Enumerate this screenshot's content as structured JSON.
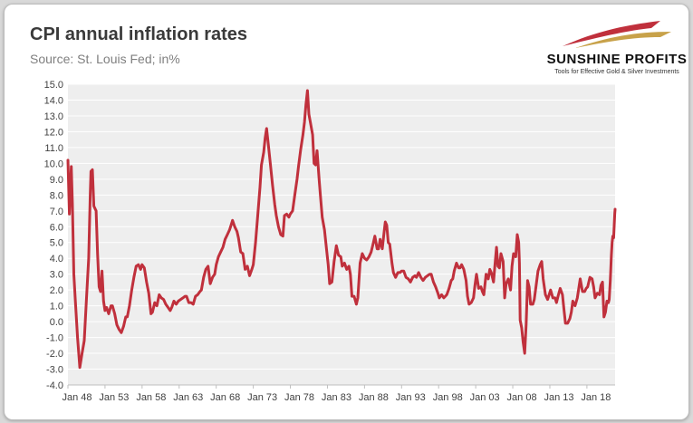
{
  "header": {
    "title": "CPI annual inflation rates",
    "subtitle": "Source: St. Louis Fed; in%"
  },
  "logo": {
    "name": "SUNSHINE PROFITS",
    "tagline": "Tools for Effective Gold & Silver Investments"
  },
  "colors": {
    "line": "#c0303c",
    "plot_bg": "#eeeeee",
    "grid": "#ffffff"
  },
  "chart_data": {
    "type": "line",
    "title": "CPI annual inflation rates",
    "subtitle": "Source: St. Louis Fed; in%",
    "xlabel": "",
    "ylabel": "",
    "ylim": [
      -4.0,
      15.0
    ],
    "xlim": [
      1948.0,
      2021.8
    ],
    "grid": "horizontal",
    "yticks": [
      "15.0",
      "14.0",
      "13.0",
      "12.0",
      "11.0",
      "10.0",
      "9.0",
      "8.0",
      "7.0",
      "6.0",
      "5.0",
      "4.0",
      "3.0",
      "2.0",
      "1.0",
      "0.0",
      "-1.0",
      "-2.0",
      "-3.0",
      "-4.0"
    ],
    "xticks": [
      "Jan 48",
      "Jan 53",
      "Jan 58",
      "Jan 63",
      "Jan 68",
      "Jan 73",
      "Jan 78",
      "Jan 83",
      "Jan 88",
      "Jan 93",
      "Jan 98",
      "Jan 03",
      "Jan 08",
      "Jan 13",
      "Jan 18"
    ],
    "series": [
      {
        "values": [
          [
            1948.0,
            10.2
          ],
          [
            1948.2,
            6.8
          ],
          [
            1948.45,
            9.8
          ],
          [
            1948.6,
            7.5
          ],
          [
            1948.8,
            3.0
          ],
          [
            1949.0,
            1.3
          ],
          [
            1949.3,
            -1.0
          ],
          [
            1949.6,
            -2.9
          ],
          [
            1949.9,
            -2.0
          ],
          [
            1950.2,
            -1.2
          ],
          [
            1950.5,
            1.5
          ],
          [
            1950.8,
            4.0
          ],
          [
            1951.0,
            8.0
          ],
          [
            1951.1,
            9.5
          ],
          [
            1951.3,
            9.6
          ],
          [
            1951.5,
            7.3
          ],
          [
            1951.8,
            7.0
          ],
          [
            1952.0,
            4.3
          ],
          [
            1952.2,
            2.2
          ],
          [
            1952.4,
            1.9
          ],
          [
            1952.6,
            3.2
          ],
          [
            1952.8,
            1.3
          ],
          [
            1953.0,
            0.7
          ],
          [
            1953.2,
            0.9
          ],
          [
            1953.5,
            0.5
          ],
          [
            1953.8,
            1.0
          ],
          [
            1954.0,
            1.0
          ],
          [
            1954.3,
            0.5
          ],
          [
            1954.6,
            -0.2
          ],
          [
            1954.9,
            -0.5
          ],
          [
            1955.2,
            -0.7
          ],
          [
            1955.5,
            -0.3
          ],
          [
            1955.8,
            0.3
          ],
          [
            1956.0,
            0.3
          ],
          [
            1956.3,
            1.0
          ],
          [
            1956.6,
            2.0
          ],
          [
            1956.9,
            2.8
          ],
          [
            1957.2,
            3.5
          ],
          [
            1957.5,
            3.6
          ],
          [
            1957.8,
            3.3
          ],
          [
            1958.0,
            3.6
          ],
          [
            1958.3,
            3.4
          ],
          [
            1958.6,
            2.5
          ],
          [
            1958.9,
            1.8
          ],
          [
            1959.2,
            0.5
          ],
          [
            1959.4,
            0.6
          ],
          [
            1959.7,
            1.2
          ],
          [
            1960.0,
            1.0
          ],
          [
            1960.3,
            1.7
          ],
          [
            1960.6,
            1.5
          ],
          [
            1960.9,
            1.4
          ],
          [
            1961.2,
            1.1
          ],
          [
            1961.5,
            0.9
          ],
          [
            1961.8,
            0.7
          ],
          [
            1962.0,
            0.9
          ],
          [
            1962.3,
            1.3
          ],
          [
            1962.6,
            1.1
          ],
          [
            1962.9,
            1.3
          ],
          [
            1963.2,
            1.4
          ],
          [
            1963.5,
            1.5
          ],
          [
            1963.8,
            1.6
          ],
          [
            1964.0,
            1.6
          ],
          [
            1964.3,
            1.2
          ],
          [
            1964.6,
            1.2
          ],
          [
            1964.9,
            1.1
          ],
          [
            1965.2,
            1.6
          ],
          [
            1965.5,
            1.7
          ],
          [
            1965.8,
            1.9
          ],
          [
            1966.0,
            2.0
          ],
          [
            1966.3,
            2.8
          ],
          [
            1966.6,
            3.3
          ],
          [
            1966.9,
            3.5
          ],
          [
            1967.2,
            2.4
          ],
          [
            1967.5,
            2.8
          ],
          [
            1967.8,
            3.0
          ],
          [
            1968.0,
            3.6
          ],
          [
            1968.3,
            4.1
          ],
          [
            1968.6,
            4.4
          ],
          [
            1968.9,
            4.7
          ],
          [
            1969.2,
            5.2
          ],
          [
            1969.5,
            5.5
          ],
          [
            1969.8,
            5.8
          ],
          [
            1970.0,
            6.1
          ],
          [
            1970.2,
            6.4
          ],
          [
            1970.5,
            6.0
          ],
          [
            1970.8,
            5.7
          ],
          [
            1971.0,
            5.3
          ],
          [
            1971.3,
            4.4
          ],
          [
            1971.6,
            4.3
          ],
          [
            1971.9,
            3.3
          ],
          [
            1972.2,
            3.5
          ],
          [
            1972.5,
            2.9
          ],
          [
            1972.8,
            3.3
          ],
          [
            1973.0,
            3.6
          ],
          [
            1973.3,
            5.0
          ],
          [
            1973.6,
            6.7
          ],
          [
            1973.9,
            8.5
          ],
          [
            1974.1,
            9.9
          ],
          [
            1974.4,
            10.7
          ],
          [
            1974.6,
            11.6
          ],
          [
            1974.8,
            12.2
          ],
          [
            1975.0,
            11.3
          ],
          [
            1975.3,
            10.0
          ],
          [
            1975.6,
            8.6
          ],
          [
            1975.9,
            7.4
          ],
          [
            1976.1,
            6.7
          ],
          [
            1976.4,
            6.0
          ],
          [
            1976.7,
            5.5
          ],
          [
            1977.0,
            5.4
          ],
          [
            1977.2,
            6.7
          ],
          [
            1977.5,
            6.8
          ],
          [
            1977.8,
            6.6
          ],
          [
            1978.0,
            6.8
          ],
          [
            1978.3,
            7.0
          ],
          [
            1978.6,
            8.0
          ],
          [
            1978.9,
            9.0
          ],
          [
            1979.1,
            9.8
          ],
          [
            1979.4,
            10.9
          ],
          [
            1979.7,
            11.8
          ],
          [
            1979.9,
            12.6
          ],
          [
            1980.1,
            13.7
          ],
          [
            1980.3,
            14.6
          ],
          [
            1980.5,
            13.1
          ],
          [
            1980.7,
            12.6
          ],
          [
            1981.0,
            11.8
          ],
          [
            1981.2,
            10.0
          ],
          [
            1981.4,
            9.9
          ],
          [
            1981.6,
            10.8
          ],
          [
            1981.9,
            8.9
          ],
          [
            1982.1,
            7.7
          ],
          [
            1982.3,
            6.6
          ],
          [
            1982.6,
            5.8
          ],
          [
            1982.9,
            4.5
          ],
          [
            1983.1,
            3.6
          ],
          [
            1983.3,
            2.4
          ],
          [
            1983.6,
            2.5
          ],
          [
            1983.9,
            3.8
          ],
          [
            1984.2,
            4.8
          ],
          [
            1984.5,
            4.2
          ],
          [
            1984.8,
            4.1
          ],
          [
            1985.0,
            3.5
          ],
          [
            1985.3,
            3.7
          ],
          [
            1985.6,
            3.3
          ],
          [
            1985.9,
            3.5
          ],
          [
            1986.1,
            3.0
          ],
          [
            1986.3,
            1.6
          ],
          [
            1986.6,
            1.6
          ],
          [
            1986.9,
            1.1
          ],
          [
            1987.1,
            1.5
          ],
          [
            1987.4,
            3.7
          ],
          [
            1987.7,
            4.3
          ],
          [
            1988.0,
            4.0
          ],
          [
            1988.3,
            3.9
          ],
          [
            1988.6,
            4.1
          ],
          [
            1988.9,
            4.4
          ],
          [
            1989.1,
            4.8
          ],
          [
            1989.4,
            5.4
          ],
          [
            1989.7,
            4.6
          ],
          [
            1989.9,
            4.6
          ],
          [
            1990.1,
            5.2
          ],
          [
            1990.4,
            4.6
          ],
          [
            1990.6,
            5.5
          ],
          [
            1990.8,
            6.3
          ],
          [
            1991.0,
            6.1
          ],
          [
            1991.2,
            5.0
          ],
          [
            1991.4,
            4.9
          ],
          [
            1991.7,
            3.7
          ],
          [
            1991.9,
            3.1
          ],
          [
            1992.2,
            2.8
          ],
          [
            1992.5,
            3.1
          ],
          [
            1992.8,
            3.1
          ],
          [
            1993.0,
            3.2
          ],
          [
            1993.3,
            3.2
          ],
          [
            1993.6,
            2.8
          ],
          [
            1993.9,
            2.7
          ],
          [
            1994.2,
            2.5
          ],
          [
            1994.5,
            2.8
          ],
          [
            1994.8,
            2.9
          ],
          [
            1995.0,
            2.8
          ],
          [
            1995.3,
            3.1
          ],
          [
            1995.6,
            2.8
          ],
          [
            1995.9,
            2.6
          ],
          [
            1996.2,
            2.8
          ],
          [
            1996.5,
            2.9
          ],
          [
            1996.8,
            3.0
          ],
          [
            1997.0,
            3.0
          ],
          [
            1997.3,
            2.5
          ],
          [
            1997.6,
            2.2
          ],
          [
            1997.9,
            1.8
          ],
          [
            1998.1,
            1.5
          ],
          [
            1998.4,
            1.7
          ],
          [
            1998.7,
            1.5
          ],
          [
            1998.9,
            1.6
          ],
          [
            1999.1,
            1.7
          ],
          [
            1999.4,
            2.1
          ],
          [
            1999.7,
            2.6
          ],
          [
            1999.9,
            2.7
          ],
          [
            2000.1,
            3.2
          ],
          [
            2000.4,
            3.7
          ],
          [
            2000.7,
            3.4
          ],
          [
            2000.9,
            3.4
          ],
          [
            2001.1,
            3.6
          ],
          [
            2001.4,
            3.3
          ],
          [
            2001.7,
            2.6
          ],
          [
            2001.9,
            1.6
          ],
          [
            2002.1,
            1.1
          ],
          [
            2002.4,
            1.2
          ],
          [
            2002.7,
            1.5
          ],
          [
            2002.9,
            2.3
          ],
          [
            2003.1,
            3.0
          ],
          [
            2003.4,
            2.1
          ],
          [
            2003.7,
            2.2
          ],
          [
            2003.9,
            1.9
          ],
          [
            2004.1,
            1.7
          ],
          [
            2004.4,
            3.0
          ],
          [
            2004.7,
            2.7
          ],
          [
            2004.9,
            3.3
          ],
          [
            2005.1,
            3.1
          ],
          [
            2005.4,
            2.5
          ],
          [
            2005.6,
            3.6
          ],
          [
            2005.8,
            4.7
          ],
          [
            2006.0,
            3.5
          ],
          [
            2006.2,
            3.4
          ],
          [
            2006.4,
            4.3
          ],
          [
            2006.7,
            3.8
          ],
          [
            2006.9,
            1.5
          ],
          [
            2007.1,
            2.4
          ],
          [
            2007.4,
            2.7
          ],
          [
            2007.7,
            2.0
          ],
          [
            2007.9,
            3.5
          ],
          [
            2008.1,
            4.3
          ],
          [
            2008.4,
            4.1
          ],
          [
            2008.6,
            5.5
          ],
          [
            2008.8,
            5.0
          ],
          [
            2008.9,
            3.7
          ],
          [
            2009.0,
            0.1
          ],
          [
            2009.2,
            -0.4
          ],
          [
            2009.4,
            -1.3
          ],
          [
            2009.6,
            -2.0
          ],
          [
            2009.8,
            -0.2
          ],
          [
            2010.0,
            2.6
          ],
          [
            2010.2,
            2.2
          ],
          [
            2010.4,
            1.1
          ],
          [
            2010.7,
            1.1
          ],
          [
            2010.9,
            1.4
          ],
          [
            2011.1,
            2.1
          ],
          [
            2011.4,
            3.2
          ],
          [
            2011.7,
            3.6
          ],
          [
            2011.9,
            3.8
          ],
          [
            2012.1,
            2.7
          ],
          [
            2012.4,
            1.7
          ],
          [
            2012.7,
            1.4
          ],
          [
            2012.9,
            1.7
          ],
          [
            2013.1,
            2.0
          ],
          [
            2013.4,
            1.5
          ],
          [
            2013.7,
            1.5
          ],
          [
            2013.9,
            1.2
          ],
          [
            2014.1,
            1.6
          ],
          [
            2014.4,
            2.1
          ],
          [
            2014.7,
            1.7
          ],
          [
            2014.9,
            0.8
          ],
          [
            2015.1,
            -0.1
          ],
          [
            2015.4,
            -0.1
          ],
          [
            2015.7,
            0.2
          ],
          [
            2015.9,
            0.6
          ],
          [
            2016.1,
            1.3
          ],
          [
            2016.4,
            1.0
          ],
          [
            2016.7,
            1.5
          ],
          [
            2016.9,
            2.1
          ],
          [
            2017.1,
            2.7
          ],
          [
            2017.4,
            1.9
          ],
          [
            2017.7,
            1.9
          ],
          [
            2017.9,
            2.1
          ],
          [
            2018.1,
            2.2
          ],
          [
            2018.4,
            2.8
          ],
          [
            2018.7,
            2.7
          ],
          [
            2018.9,
            2.2
          ],
          [
            2019.1,
            1.5
          ],
          [
            2019.4,
            1.8
          ],
          [
            2019.7,
            1.7
          ],
          [
            2019.9,
            2.3
          ],
          [
            2020.1,
            2.5
          ],
          [
            2020.3,
            0.3
          ],
          [
            2020.5,
            0.6
          ],
          [
            2020.7,
            1.3
          ],
          [
            2020.9,
            1.2
          ],
          [
            2021.0,
            1.4
          ],
          [
            2021.15,
            2.6
          ],
          [
            2021.3,
            4.2
          ],
          [
            2021.4,
            5.0
          ],
          [
            2021.5,
            5.4
          ],
          [
            2021.6,
            5.3
          ],
          [
            2021.75,
            6.8
          ],
          [
            2021.8,
            7.1
          ]
        ]
      }
    ]
  }
}
